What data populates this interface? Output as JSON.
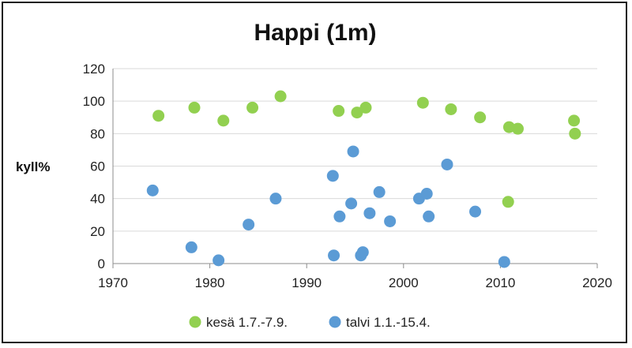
{
  "chart_data": {
    "type": "scatter",
    "title": "Happi (1m)",
    "xlabel": "",
    "ylabel": "kyll%",
    "xlim": [
      1970,
      2020
    ],
    "ylim": [
      0,
      120
    ],
    "x_ticks": [
      "1970",
      "1980",
      "1990",
      "2000",
      "2010",
      "2020"
    ],
    "y_ticks": [
      "0",
      "20",
      "40",
      "60",
      "80",
      "100",
      "120"
    ],
    "grid": "horizontal",
    "legend_position": "bottom",
    "series": [
      {
        "name": "kesä 1.7.-7.9.",
        "color": "#92d050",
        "points": [
          {
            "x": 1974.7,
            "y": 91
          },
          {
            "x": 1978.4,
            "y": 96
          },
          {
            "x": 1981.4,
            "y": 88
          },
          {
            "x": 1984.4,
            "y": 96
          },
          {
            "x": 1987.3,
            "y": 103
          },
          {
            "x": 1993.3,
            "y": 94
          },
          {
            "x": 1995.2,
            "y": 93
          },
          {
            "x": 1996.1,
            "y": 96
          },
          {
            "x": 2002.0,
            "y": 99
          },
          {
            "x": 2004.9,
            "y": 95
          },
          {
            "x": 2007.9,
            "y": 90
          },
          {
            "x": 2010.9,
            "y": 84
          },
          {
            "x": 2011.8,
            "y": 83
          },
          {
            "x": 2017.6,
            "y": 88
          },
          {
            "x": 2017.7,
            "y": 80
          },
          {
            "x": 2010.8,
            "y": 38
          }
        ]
      },
      {
        "name": "talvi 1.1.-15.4.",
        "color": "#5b9bd5",
        "points": [
          {
            "x": 1974.1,
            "y": 45
          },
          {
            "x": 1978.1,
            "y": 10
          },
          {
            "x": 1980.9,
            "y": 2
          },
          {
            "x": 1984.0,
            "y": 24
          },
          {
            "x": 1986.8,
            "y": 40
          },
          {
            "x": 1992.7,
            "y": 54
          },
          {
            "x": 1992.8,
            "y": 5
          },
          {
            "x": 1993.4,
            "y": 29
          },
          {
            "x": 1994.6,
            "y": 37
          },
          {
            "x": 1994.8,
            "y": 69
          },
          {
            "x": 1995.6,
            "y": 5
          },
          {
            "x": 1995.8,
            "y": 7
          },
          {
            "x": 1996.5,
            "y": 31
          },
          {
            "x": 1997.5,
            "y": 44
          },
          {
            "x": 1998.6,
            "y": 26
          },
          {
            "x": 2001.6,
            "y": 40
          },
          {
            "x": 2002.4,
            "y": 43
          },
          {
            "x": 2002.6,
            "y": 29
          },
          {
            "x": 2004.5,
            "y": 61
          },
          {
            "x": 2007.4,
            "y": 32
          },
          {
            "x": 2010.4,
            "y": 1
          }
        ]
      }
    ]
  }
}
